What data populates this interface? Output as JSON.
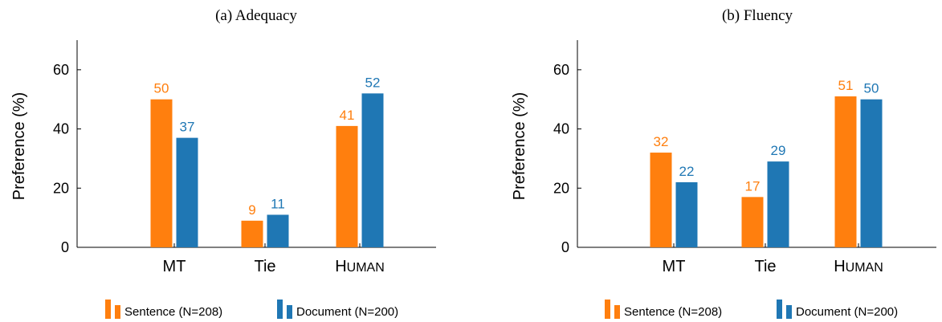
{
  "chart_data": [
    {
      "type": "bar",
      "title": "(a) Adequacy",
      "ylabel": "Preference (%)",
      "xlabel": "",
      "ylim": [
        0,
        70
      ],
      "yticks": [
        0,
        20,
        40,
        60
      ],
      "categories": [
        "MT",
        "Tie",
        "Human"
      ],
      "series": [
        {
          "name": "Sentence (N=208)",
          "color": "#ff7f0e",
          "values": [
            50,
            9,
            41
          ]
        },
        {
          "name": "Document (N=200)",
          "color": "#1f77b4",
          "values": [
            37,
            11,
            52
          ]
        }
      ],
      "legend_position": "bottom-center",
      "grid": false
    },
    {
      "type": "bar",
      "title": "(b) Fluency",
      "ylabel": "Preference (%)",
      "xlabel": "",
      "ylim": [
        0,
        70
      ],
      "yticks": [
        0,
        20,
        40,
        60
      ],
      "categories": [
        "MT",
        "Tie",
        "Human"
      ],
      "series": [
        {
          "name": "Sentence (N=208)",
          "color": "#ff7f0e",
          "values": [
            32,
            17,
            51
          ]
        },
        {
          "name": "Document (N=200)",
          "color": "#1f77b4",
          "values": [
            22,
            29,
            50
          ]
        }
      ],
      "legend_position": "bottom-center",
      "grid": false
    }
  ]
}
